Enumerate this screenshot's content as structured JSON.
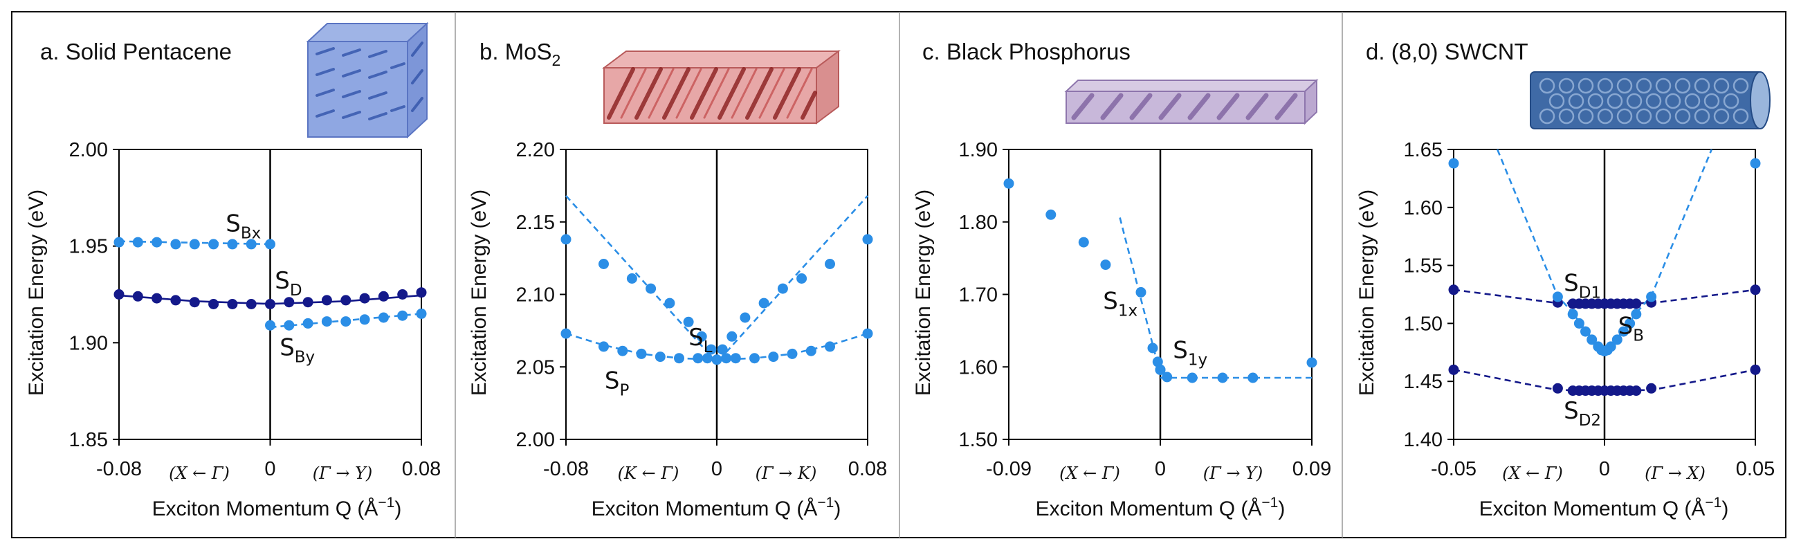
{
  "colors": {
    "light": "#2b8ee6",
    "dark": "#14198a",
    "axis": "#000000"
  },
  "chart_data": [
    {
      "type": "scatter",
      "title": "a. Solid Pentacene",
      "material_icon": "pentacene-crystal-icon",
      "xlabel": "Exciton Momentum Q (Å",
      "xlabel_sup": "−1",
      "xlabel_end": ")",
      "ylabel": "Excitation Energy (eV)",
      "xlim": [
        -0.08,
        0.08
      ],
      "ylim": [
        1.85,
        2.0
      ],
      "xticks": [
        "-0.08",
        "0",
        "0.08"
      ],
      "xtick_values": [
        -0.08,
        0,
        0.08
      ],
      "yticks": [
        "1.85",
        "1.90",
        "1.95",
        "2.00"
      ],
      "ytick_values": [
        1.85,
        1.9,
        1.95,
        2.0
      ],
      "direction_labels": [
        "(X ← Γ)",
        "(Γ → Y)"
      ],
      "annotations": [
        {
          "text": "S",
          "sub": "Bx",
          "x": -0.0235,
          "y": 1.9575
        },
        {
          "text": "S",
          "sub": "D",
          "x": 0.0025,
          "y": 1.928
        },
        {
          "text": "S",
          "sub": "By",
          "x": 0.005,
          "y": 1.8935
        }
      ],
      "series": [
        {
          "name": "S_Bx",
          "color": "light",
          "x": [
            -0.08,
            -0.07,
            -0.06,
            -0.05,
            -0.04,
            -0.03,
            -0.02,
            -0.01,
            0.0
          ],
          "y": [
            1.952,
            1.952,
            1.952,
            1.951,
            1.951,
            1.951,
            1.951,
            1.951,
            1.951
          ]
        },
        {
          "name": "S_D",
          "color": "dark",
          "x": [
            -0.08,
            -0.07,
            -0.06,
            -0.05,
            -0.04,
            -0.03,
            -0.02,
            -0.01,
            0.0,
            0.01,
            0.02,
            0.03,
            0.04,
            0.05,
            0.06,
            0.07,
            0.08
          ],
          "y": [
            1.925,
            1.924,
            1.923,
            1.922,
            1.921,
            1.92,
            1.92,
            1.92,
            1.92,
            1.921,
            1.921,
            1.922,
            1.922,
            1.923,
            1.924,
            1.925,
            1.926
          ]
        },
        {
          "name": "S_By",
          "color": "light",
          "x": [
            0.0,
            0.01,
            0.02,
            0.03,
            0.04,
            0.05,
            0.06,
            0.07,
            0.08
          ],
          "y": [
            1.909,
            1.909,
            1.91,
            1.911,
            1.911,
            1.912,
            1.913,
            1.914,
            1.915
          ]
        }
      ],
      "fit_lines": [
        {
          "color": "light",
          "dashed": true,
          "x": [
            -0.08,
            0.0
          ],
          "y": [
            1.9525,
            1.951
          ]
        },
        {
          "color": "dark",
          "dashed": false,
          "x": [
            -0.08,
            -0.04,
            0.0,
            0.04,
            0.08
          ],
          "y": [
            1.9245,
            1.9215,
            1.9201,
            1.9215,
            1.9245
          ]
        },
        {
          "color": "light",
          "dashed": true,
          "x": [
            0.0,
            0.08
          ],
          "y": [
            1.908,
            1.915
          ]
        }
      ]
    },
    {
      "type": "scatter",
      "title": "b. MoS",
      "title_sub": "2",
      "material_icon": "mos2-layer-icon",
      "xlabel": "Exciton Momentum Q (Å",
      "xlabel_sup": "−1",
      "xlabel_end": ")",
      "ylabel": "Excitation Energy (eV)",
      "xlim": [
        -0.08,
        0.08
      ],
      "ylim": [
        2.0,
        2.2
      ],
      "xticks": [
        "-0.08",
        "0",
        "0.08"
      ],
      "xtick_values": [
        -0.08,
        0,
        0.08
      ],
      "yticks": [
        "2.00",
        "2.05",
        "2.10",
        "2.15",
        "2.20"
      ],
      "ytick_values": [
        2.0,
        2.05,
        2.1,
        2.15,
        2.2
      ],
      "direction_labels": [
        "(K ← Γ)",
        "(Γ → K)"
      ],
      "annotations": [
        {
          "text": "S",
          "sub": "L",
          "x": -0.015,
          "y": 2.065
        },
        {
          "text": "S",
          "sub": "P",
          "x": -0.0595,
          "y": 2.035
        }
      ],
      "series": [
        {
          "name": "S_L",
          "color": "light",
          "x": [
            -0.08,
            -0.06,
            -0.045,
            -0.035,
            -0.025,
            -0.015,
            -0.008,
            -0.003,
            0.003,
            0.008,
            0.015,
            0.025,
            0.035,
            0.045,
            0.06,
            0.08
          ],
          "y": [
            2.138,
            2.121,
            2.111,
            2.104,
            2.094,
            2.081,
            2.071,
            2.062,
            2.062,
            2.071,
            2.084,
            2.094,
            2.104,
            2.111,
            2.121,
            2.138
          ]
        },
        {
          "name": "S_P",
          "color": "light",
          "x": [
            -0.08,
            -0.06,
            -0.05,
            -0.04,
            -0.03,
            -0.02,
            -0.01,
            -0.005,
            0.0,
            0.005,
            0.01,
            0.02,
            0.03,
            0.04,
            0.05,
            0.06,
            0.08
          ],
          "y": [
            2.073,
            2.064,
            2.061,
            2.059,
            2.057,
            2.056,
            2.056,
            2.056,
            2.055,
            2.056,
            2.056,
            2.056,
            2.057,
            2.059,
            2.061,
            2.064,
            2.073
          ]
        }
      ],
      "fit_lines": [
        {
          "color": "light",
          "dashed": true,
          "x": [
            -0.08,
            0.0,
            0.08
          ],
          "y": [
            2.168,
            2.053,
            2.168
          ]
        },
        {
          "color": "light",
          "dashed": true,
          "x": [
            -0.08,
            -0.06,
            -0.04,
            -0.02,
            0.0,
            0.02,
            0.04,
            0.06,
            0.08
          ],
          "y": [
            2.073,
            2.065,
            2.059,
            2.056,
            2.055,
            2.056,
            2.059,
            2.065,
            2.073
          ]
        }
      ]
    },
    {
      "type": "scatter",
      "title": "c. Black Phosphorus",
      "material_icon": "black-phosphorus-layer-icon",
      "xlabel": "Exciton Momentum Q (Å",
      "xlabel_sup": "−1",
      "xlabel_end": ")",
      "ylabel": "Excitation Energy (eV)",
      "xlim": [
        -0.09,
        0.09
      ],
      "ylim": [
        1.5,
        1.9
      ],
      "xticks": [
        "-0.09",
        "0",
        "0.09"
      ],
      "xtick_values": [
        -0.09,
        0,
        0.09
      ],
      "yticks": [
        "1.50",
        "1.60",
        "1.70",
        "1.80",
        "1.90"
      ],
      "ytick_values": [
        1.5,
        1.6,
        1.7,
        1.8,
        1.9
      ],
      "direction_labels": [
        "(X ← Γ)",
        "(Γ → Y)"
      ],
      "annotations": [
        {
          "text": "S",
          "sub": "1x",
          "x": -0.034,
          "y": 1.68
        },
        {
          "text": "S",
          "sub": "1y",
          "x": 0.0075,
          "y": 1.612
        }
      ],
      "series": [
        {
          "name": "S_1x",
          "color": "light",
          "x": [
            -0.09,
            -0.065,
            -0.0455,
            -0.0325,
            -0.0115,
            -0.0045,
            -0.0015,
            0.0
          ],
          "y": [
            1.853,
            1.81,
            1.772,
            1.741,
            1.703,
            1.626,
            1.607,
            1.596
          ]
        },
        {
          "name": "S_1y",
          "color": "light",
          "x": [
            0.0,
            0.004,
            0.019,
            0.037,
            0.055,
            0.09
          ],
          "y": [
            1.596,
            1.586,
            1.585,
            1.585,
            1.585,
            1.606
          ]
        }
      ],
      "fit_lines": [
        {
          "color": "light",
          "dashed": true,
          "x": [
            -0.024,
            0.0
          ],
          "y": [
            1.806,
            1.59
          ]
        },
        {
          "color": "light",
          "dashed": true,
          "x": [
            0.0,
            0.09
          ],
          "y": [
            1.585,
            1.585
          ]
        }
      ]
    },
    {
      "type": "scatter",
      "title": "d. (8,0) SWCNT",
      "material_icon": "swcnt-tube-icon",
      "xlabel": "Exciton Momentum Q (Å",
      "xlabel_sup": "−1",
      "xlabel_end": ")",
      "ylabel": "Excitation Energy (eV)",
      "xlim": [
        -0.05,
        0.05
      ],
      "ylim": [
        1.4,
        1.65
      ],
      "xticks": [
        "-0.05",
        "0",
        "0.05"
      ],
      "xtick_values": [
        -0.05,
        0,
        0.05
      ],
      "yticks": [
        "1.40",
        "1.45",
        "1.50",
        "1.55",
        "1.60",
        "1.65"
      ],
      "ytick_values": [
        1.4,
        1.45,
        1.5,
        1.55,
        1.6,
        1.65
      ],
      "direction_labels": [
        "(X ← Γ)",
        "(Γ → X)"
      ],
      "annotations": [
        {
          "text": "S",
          "sub": "D1",
          "x": -0.0135,
          "y": 1.528
        },
        {
          "text": "S",
          "sub": "B",
          "x": 0.0045,
          "y": 1.491
        },
        {
          "text": "S",
          "sub": "D2",
          "x": -0.0135,
          "y": 1.418
        }
      ],
      "series": [
        {
          "name": "S_D1",
          "color": "dark",
          "x": [
            -0.05,
            -0.0155,
            -0.0105,
            -0.0084,
            -0.0063,
            -0.0042,
            -0.0021,
            0.0,
            0.0021,
            0.0042,
            0.0063,
            0.0084,
            0.0105,
            0.0155,
            0.05
          ],
          "y": [
            1.529,
            1.518,
            1.517,
            1.517,
            1.517,
            1.517,
            1.517,
            1.517,
            1.517,
            1.517,
            1.517,
            1.517,
            1.517,
            1.518,
            1.529
          ]
        },
        {
          "name": "S_D2",
          "color": "dark",
          "x": [
            -0.05,
            -0.0155,
            -0.0105,
            -0.0084,
            -0.0063,
            -0.0042,
            -0.0021,
            0.0,
            0.0021,
            0.0042,
            0.0063,
            0.0084,
            0.0105,
            0.0155,
            0.05
          ],
          "y": [
            1.46,
            1.444,
            1.442,
            1.442,
            1.442,
            1.442,
            1.442,
            1.442,
            1.442,
            1.442,
            1.442,
            1.442,
            1.442,
            1.444,
            1.46
          ]
        },
        {
          "name": "S_B",
          "color": "light",
          "x": [
            -0.05,
            -0.0155,
            -0.0105,
            -0.0084,
            -0.0063,
            -0.0042,
            -0.0021,
            -0.001,
            0.0,
            0.001,
            0.0021,
            0.0042,
            0.0063,
            0.0084,
            0.0105,
            0.0155,
            0.05
          ],
          "y": [
            1.638,
            1.523,
            1.508,
            1.5,
            1.493,
            1.486,
            1.48,
            1.477,
            1.476,
            1.477,
            1.48,
            1.486,
            1.493,
            1.5,
            1.508,
            1.523,
            1.638
          ]
        }
      ],
      "fit_lines": [
        {
          "color": "dark",
          "dashed": true,
          "x": [
            -0.05,
            -0.0155,
            0.0155,
            0.05
          ],
          "y": [
            1.529,
            1.5175,
            1.5175,
            1.529
          ]
        },
        {
          "color": "dark",
          "dashed": true,
          "x": [
            -0.05,
            -0.0155,
            0.0155,
            0.05
          ],
          "y": [
            1.46,
            1.4425,
            1.4425,
            1.46
          ]
        },
        {
          "color": "light",
          "dashed": true,
          "x": [
            -0.0355,
            -0.0156,
            -0.0105,
            -0.0063,
            -0.0021,
            0.0,
            0.0021,
            0.0063,
            0.0105,
            0.0156,
            0.0355
          ],
          "y": [
            1.65,
            1.524,
            1.509,
            1.494,
            1.481,
            1.477,
            1.481,
            1.494,
            1.509,
            1.524,
            1.65
          ]
        }
      ]
    }
  ]
}
